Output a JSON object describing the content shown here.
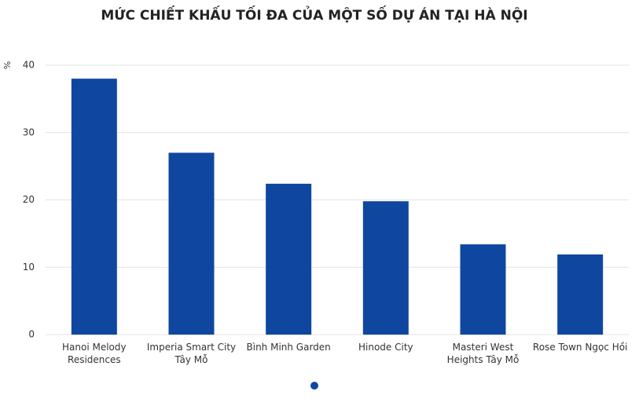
{
  "chart_data": {
    "type": "bar",
    "title": "MỨC CHIẾT KHẤU TỐI ĐA CỦA MỘT SỐ DỰ ÁN TẠI HÀ NỘI",
    "y_label": "%",
    "categories": [
      "Hanoi Melody Residences",
      "Imperia Smart City Tây Mỗ",
      "Bình Minh Garden",
      "Hinode City",
      "Masteri West Heights Tây Mỗ",
      "Rose Town Ngọc Hồi"
    ],
    "values": [
      38,
      27,
      22.4,
      19.8,
      13.4,
      11.9
    ],
    "color": "#0f47a0",
    "ylim": [
      0,
      40
    ],
    "yticks": [
      0,
      10,
      20,
      30,
      40
    ],
    "grid": true
  }
}
